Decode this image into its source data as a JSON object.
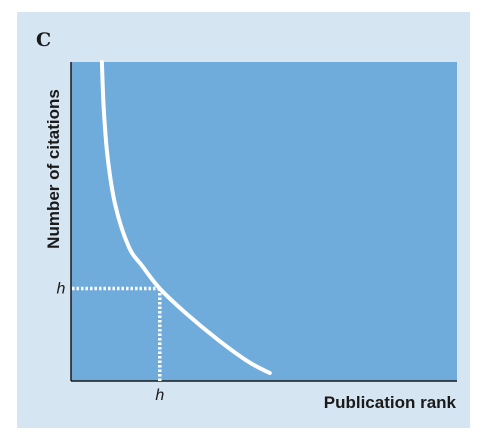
{
  "panel_letter": "C",
  "colors": {
    "panel_background": "#d6e5f2",
    "plot_background": "#70acdb",
    "curve": "#ffffff",
    "axis": "#1a1a1a"
  },
  "chart_data": {
    "type": "line",
    "title": "",
    "xlabel": "Publication rank",
    "ylabel": "Number of citations",
    "tick_labels_x": [
      "h"
    ],
    "tick_labels_y": [
      "h"
    ],
    "grid": false,
    "legend": "none",
    "x_range": [
      0,
      10
    ],
    "y_range": [
      0,
      10
    ],
    "series": [
      {
        "values_xy": [
          [
            0.8,
            10.0
          ],
          [
            0.85,
            8.5
          ],
          [
            0.95,
            7.0
          ],
          [
            1.15,
            5.5
          ],
          [
            1.5,
            4.2
          ],
          [
            1.85,
            3.6
          ],
          [
            2.3,
            2.9
          ],
          [
            3.0,
            2.1
          ],
          [
            3.8,
            1.3
          ],
          [
            4.6,
            0.6
          ],
          [
            5.15,
            0.25
          ]
        ]
      }
    ],
    "annotations": [
      {
        "label": "h",
        "x": 2.3,
        "y": 2.9,
        "style": "dotted",
        "description_of_guides": "dotted lines from curve to both axes"
      }
    ]
  }
}
